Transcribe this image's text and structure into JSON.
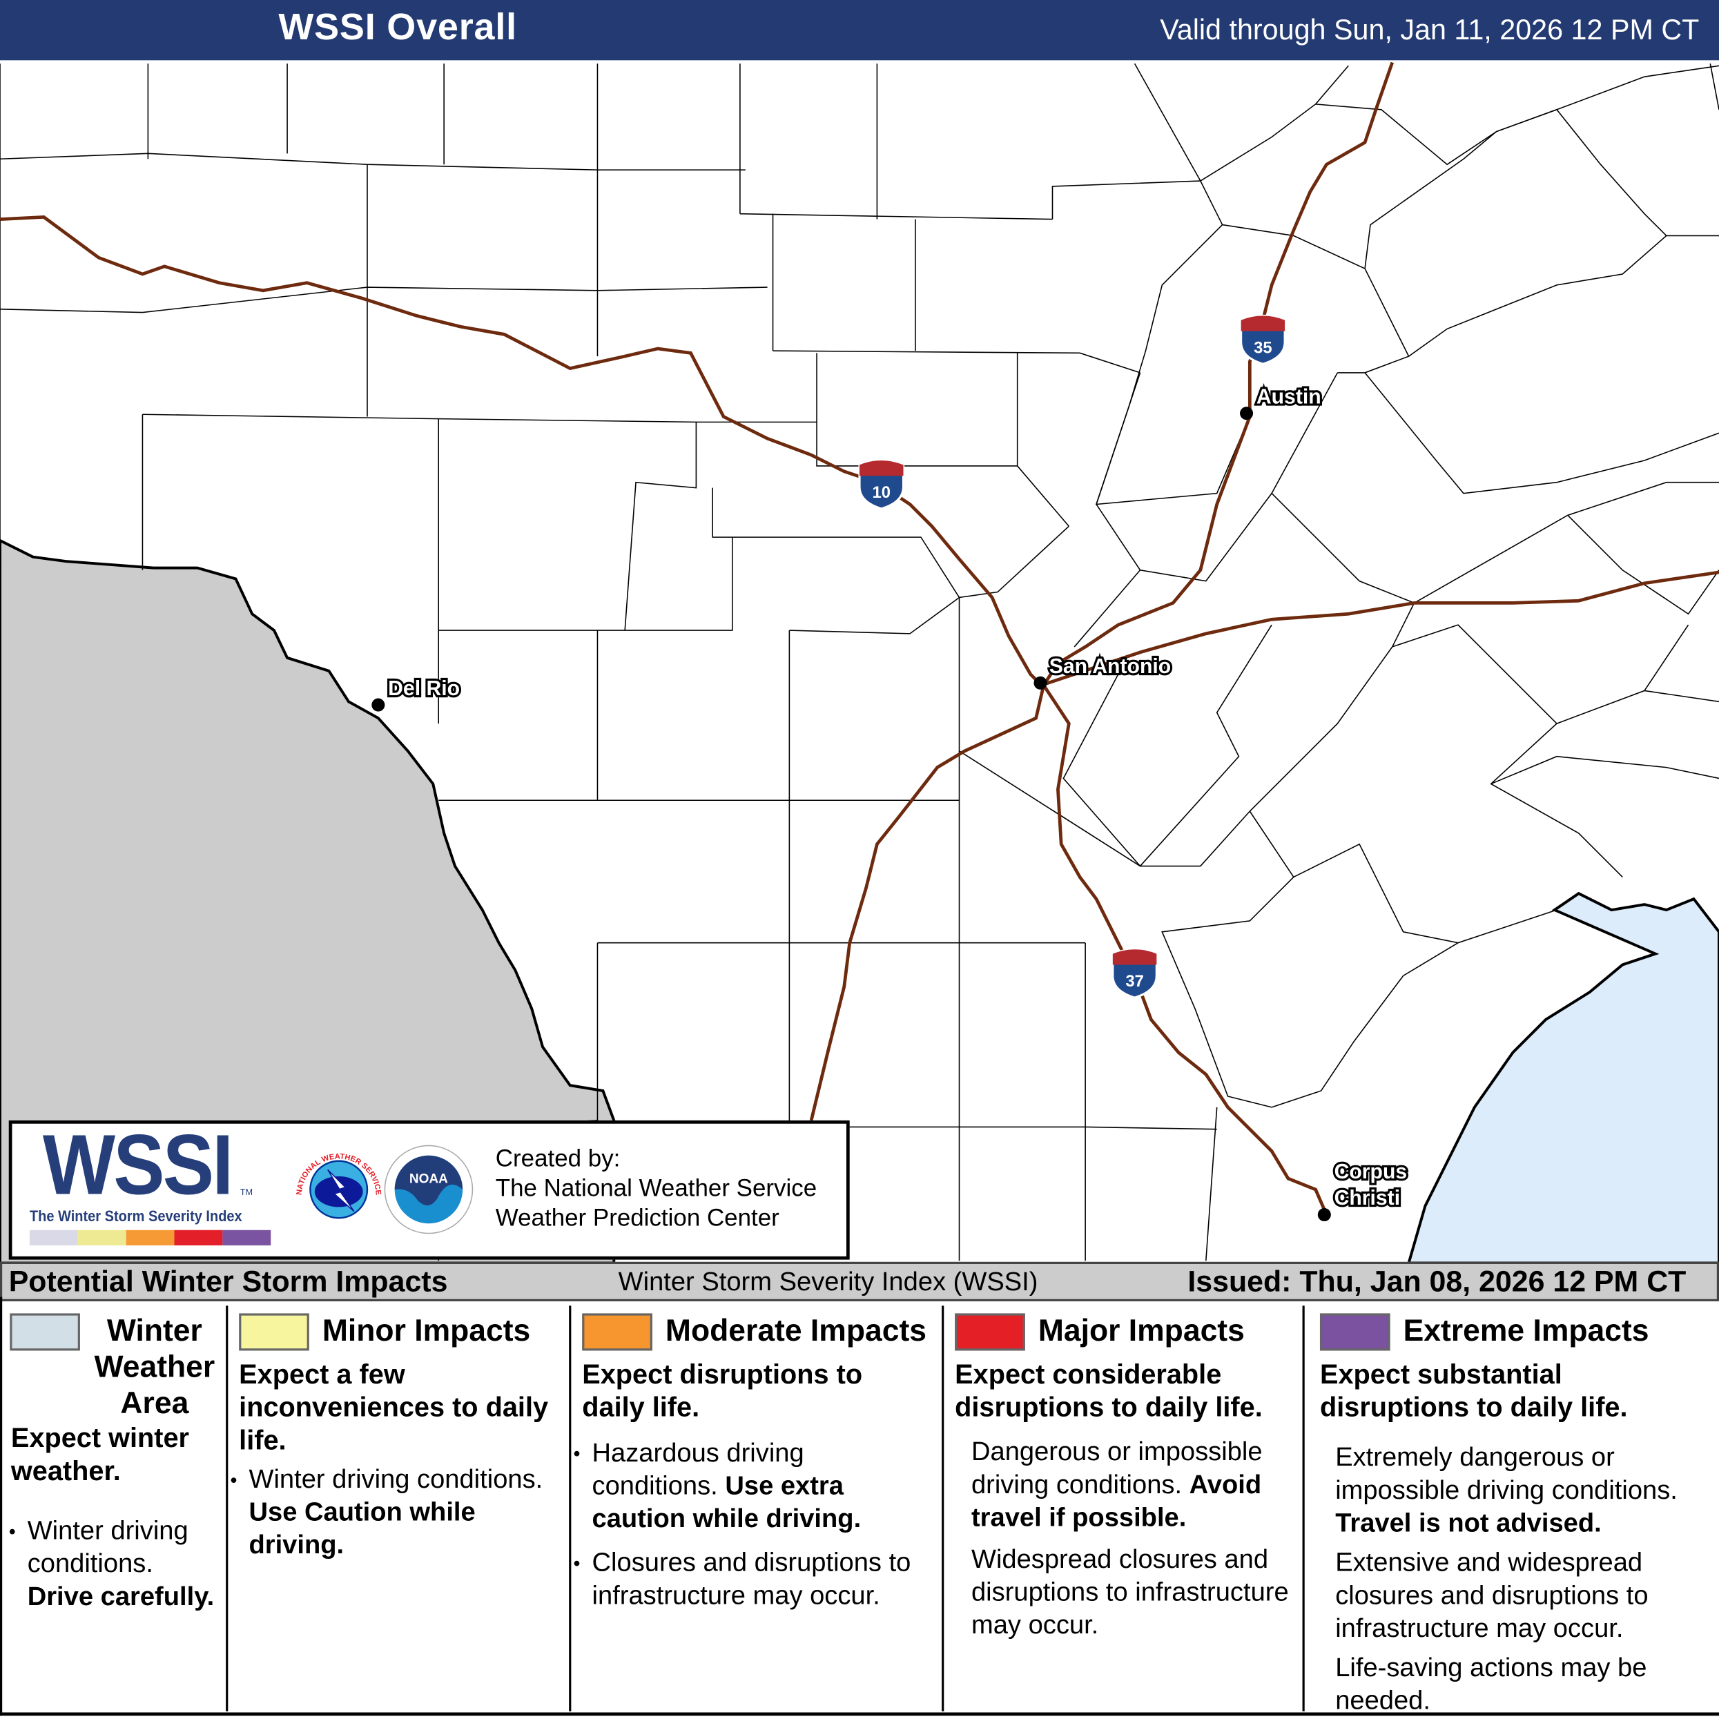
{
  "header": {
    "title": "WSSI Overall",
    "valid": "Valid through Sun, Jan 11, 2026 12 PM CT",
    "background": "#233b72"
  },
  "map": {
    "cities": [
      {
        "name": "Del Rio"
      },
      {
        "name": "Austin"
      },
      {
        "name": "San Antonio"
      },
      {
        "name": "Corpus"
      },
      {
        "name": "Christi"
      }
    ],
    "highways": [
      {
        "number": "10"
      },
      {
        "number": "35"
      },
      {
        "number": "37"
      }
    ],
    "colors": {
      "mexico": "#cccccc",
      "water": "#dcecfb",
      "highway": "#6e2a0e",
      "county": "#000000"
    }
  },
  "logo": {
    "wssi": "WSSI",
    "tm": "TM",
    "subtitle": "The Winter Storm Severity Index",
    "scale_colors": [
      "#d9d9e8",
      "#eeea93",
      "#f59a35",
      "#e3202a",
      "#7a54a1"
    ],
    "nws_ring": "NATIONAL WEATHER SERVICE",
    "noaa": "NOAA",
    "created_by": "Created by:",
    "org1": "The National Weather Service",
    "org2": "Weather Prediction Center"
  },
  "bar": {
    "left": "Potential Winter Storm Impacts",
    "center": "Winter Storm Severity Index (WSSI)",
    "right": "Issued: Thu, Jan 08, 2026 12 PM CT"
  },
  "legend": {
    "winter": {
      "color": "#d2dfe7",
      "title1": "Winter",
      "title2": "Weather",
      "title3": "Area",
      "head": "Expect winter weather.",
      "b1": "Winter driving conditions.",
      "b1_bold": "Drive carefully."
    },
    "minor": {
      "color": "#f7f59e",
      "title": "Minor Impacts",
      "head": "Expect a few inconveniences to daily life.",
      "b1": "Winter driving conditions.",
      "b1_bold": "Use Caution while driving."
    },
    "moderate": {
      "color": "#f7962f",
      "title": "Moderate Impacts",
      "head": "Expect disruptions to daily life.",
      "b1": "Hazardous driving conditions.",
      "b1_bold": "Use extra caution while driving.",
      "b2": "Closures and disruptions to infrastructure may occur."
    },
    "major": {
      "color": "#e41f26",
      "title": "Major Impacts",
      "head": "Expect considerable disruptions to daily life.",
      "p1": "Dangerous or impossible driving conditions.",
      "p1_bold": "Avoid travel if possible.",
      "p2": "Widespread closures and disruptions to infrastructure may occur."
    },
    "extreme": {
      "color": "#7a52a0",
      "title": "Extreme Impacts",
      "head": "Expect substantial disruptions to daily life.",
      "p1": "Extremely dangerous or impossible driving conditions.",
      "p1_bold": "Travel is not advised.",
      "p2": "Extensive and widespread closures and disruptions to infrastructure may occur.",
      "p3": "Life-saving actions may be needed."
    }
  }
}
